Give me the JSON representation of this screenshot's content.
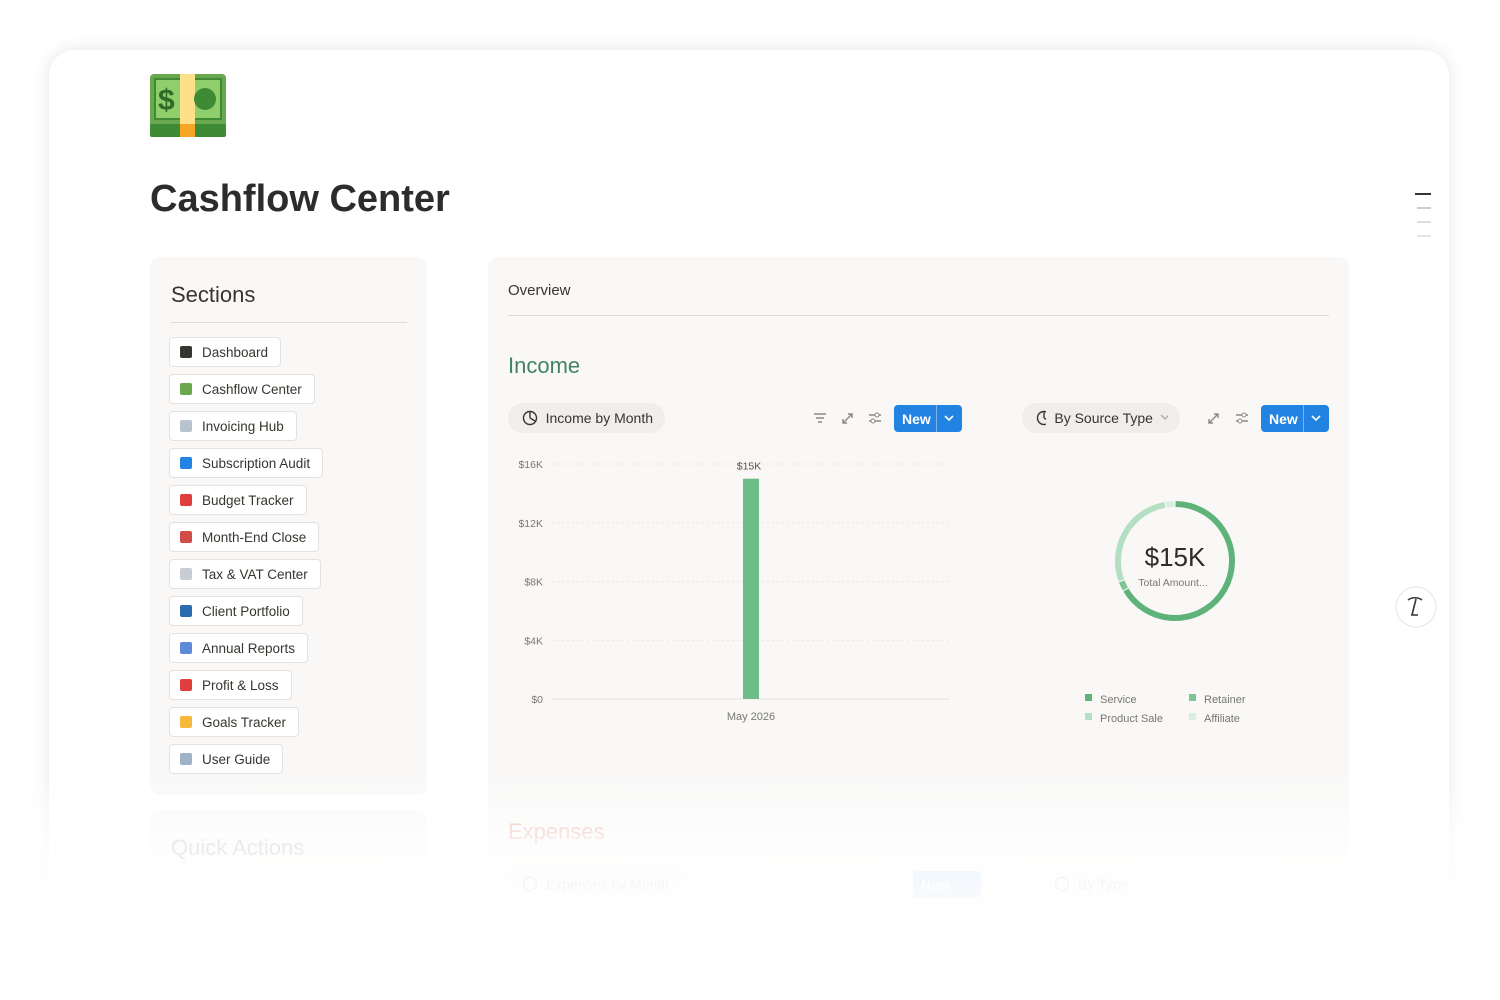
{
  "page": {
    "title": "Cashflow Center"
  },
  "sections": {
    "heading": "Sections",
    "items": [
      "Dashboard",
      "Cashflow Center",
      "Invoicing Hub",
      "Subscription Audit",
      "Budget Tracker",
      "Month-End Close",
      "Tax & VAT Center",
      "Client Portfolio",
      "Annual Reports",
      "Profit & Loss",
      "Goals Tracker",
      "User Guide"
    ]
  },
  "quick_actions": {
    "heading": "Quick Actions"
  },
  "overview": {
    "label": "Overview"
  },
  "income": {
    "heading": "Income",
    "views": [
      {
        "label": "Income by Month",
        "button": "New"
      },
      {
        "label": "By Source Type",
        "button": "New"
      }
    ]
  },
  "expenses": {
    "heading": "Expenses",
    "views": [
      {
        "label": "Expenses by Month",
        "button": "New"
      },
      {
        "label": "By Type"
      }
    ]
  },
  "chart_data": [
    {
      "type": "bar",
      "categories": [
        "May 2026"
      ],
      "values": [
        15000
      ],
      "value_labels": [
        "$15K"
      ],
      "color": "#6dbd8a",
      "ylim": [
        0,
        16000
      ],
      "yticks": [
        {
          "value": 0,
          "label": "$0"
        },
        {
          "value": 4000,
          "label": "$4K"
        },
        {
          "value": 8000,
          "label": "$8K"
        },
        {
          "value": 12000,
          "label": "$12K"
        },
        {
          "value": 16000,
          "label": "$16K"
        }
      ],
      "grid": true
    },
    {
      "type": "donut",
      "center_text": "$15K",
      "center_caption": "Total Amount...",
      "categories": [
        "Service",
        "Retainer",
        "Product Sale",
        "Affiliate"
      ],
      "values": [
        10000,
        400,
        4200,
        400
      ],
      "colors": [
        "#5fb37a",
        "#7cc693",
        "#b5dfc2",
        "#d9efdf"
      ]
    }
  ]
}
